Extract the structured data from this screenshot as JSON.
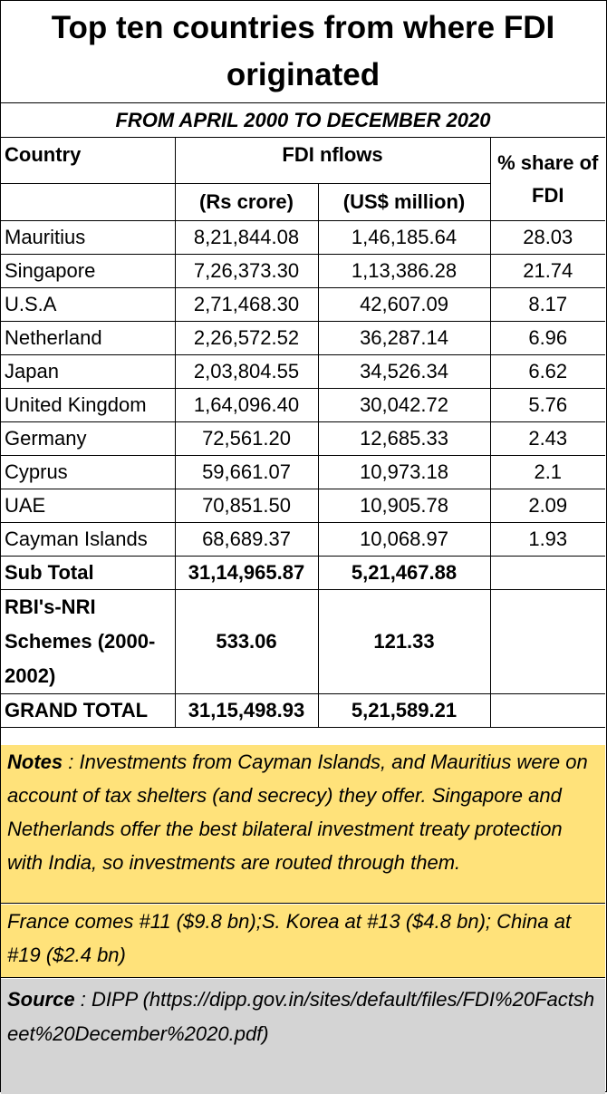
{
  "title": "Top ten countries from where FDI originated",
  "subtitle": "FROM APRIL 2000 TO DECEMBER 2020",
  "headers": {
    "country": "Country",
    "fdi_inflows": "FDI nflows",
    "share": "% share of FDI",
    "rs_crore": "(Rs crore)",
    "usd_million": "(US$ million)"
  },
  "rows": [
    {
      "country": "Mauritius",
      "rs": "8,21,844.08",
      "usd": "1,46,185.64",
      "share": "28.03"
    },
    {
      "country": "Singapore",
      "rs": "7,26,373.30",
      "usd": "1,13,386.28",
      "share": "21.74"
    },
    {
      "country": "U.S.A",
      "rs": "2,71,468.30",
      "usd": "42,607.09",
      "share": "8.17"
    },
    {
      "country": "Netherland",
      "rs": "2,26,572.52",
      "usd": "36,287.14",
      "share": "6.96"
    },
    {
      "country": "Japan",
      "rs": "2,03,804.55",
      "usd": "34,526.34",
      "share": "6.62"
    },
    {
      "country": "United Kingdom",
      "rs": "1,64,096.40",
      "usd": "30,042.72",
      "share": "5.76"
    },
    {
      "country": "Germany",
      "rs": "72,561.20",
      "usd": "12,685.33",
      "share": "2.43"
    },
    {
      "country": "Cyprus",
      "rs": "59,661.07",
      "usd": "10,973.18",
      "share": "2.1"
    },
    {
      "country": "UAE",
      "rs": "70,851.50",
      "usd": "10,905.78",
      "share": "2.09"
    },
    {
      "country": "Cayman Islands",
      "rs": "68,689.37",
      "usd": "10,068.97",
      "share": "1.93"
    }
  ],
  "subtotal": {
    "label": "Sub Total",
    "rs": "31,14,965.87",
    "usd": "5,21,467.88"
  },
  "rbi": {
    "label": "RBI's-NRI Schemes (2000-2002)",
    "rs": "533.06",
    "usd": "121.33"
  },
  "grand_total": {
    "label": "GRAND TOTAL",
    "rs": "31,15,498.93",
    "usd": "5,21,589.21"
  },
  "notes": {
    "label": "Notes",
    "text": " : Investments from Cayman Islands, and Mauritius were on account of tax shelters (and secrecy)  they offer. Singapore and Netherlands offer the best bilateral investment treaty protection with India, so investments are routed through them."
  },
  "notes2": "France comes #11 ($9.8 bn);S. Korea at #13 ($4.8 bn); China  at #19 ($2.4 bn)",
  "source": {
    "label": "Source",
    "sep": " :  ",
    "text": "DIPP (https://dipp.gov.in/sites/default/files/FDI%20Factsheet%20December%2020.pdf)"
  }
}
